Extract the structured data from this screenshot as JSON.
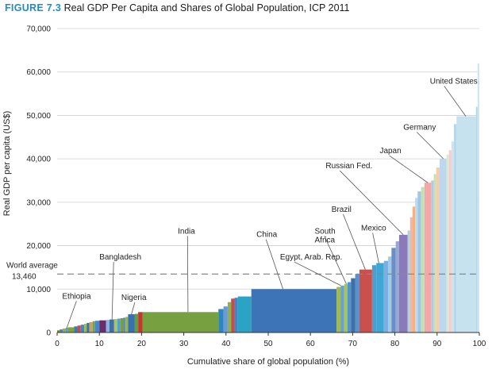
{
  "figure": {
    "number": "FIGURE 7.3",
    "title": "Real GDP Per Capita and Shares of Global Population, ICP 2011"
  },
  "colors": {
    "accent": "#1b8fc5",
    "grid": "#cfcfcf",
    "reference_line": "#888888"
  },
  "chart_data": {
    "type": "bar",
    "subtype": "variable-width",
    "xlabel": "Cumulative share of global population (%)",
    "ylabel": "Real GDP per capita (US$)",
    "xlim": [
      0,
      100
    ],
    "ylim": [
      0,
      70000
    ],
    "x_ticks": [
      "0",
      "10",
      "20",
      "30",
      "40",
      "50",
      "60",
      "70",
      "80",
      "90",
      "100"
    ],
    "y_ticks": [
      "0",
      "10,000",
      "20,000",
      "30,000",
      "40,000",
      "50,000",
      "60,000",
      "70,000"
    ],
    "grid": true,
    "reference_line": {
      "value": 13460,
      "label_line1": "World average",
      "label_line2": "13,460"
    },
    "bars": [
      {
        "x0": 0.0,
        "x1": 0.6,
        "y": 500,
        "color": "#6b8e23"
      },
      {
        "x0": 0.6,
        "x1": 1.3,
        "y": 700,
        "color": "#4a7db8"
      },
      {
        "x0": 1.3,
        "x1": 2.0,
        "y": 900,
        "color": "#8cb04a"
      },
      {
        "x0": 2.0,
        "x1": 2.6,
        "y": 1100,
        "color": "#5a9bd4"
      },
      {
        "x0": 2.6,
        "x1": 4.0,
        "y": 1200,
        "color": "#7ca33e"
      },
      {
        "x0": 4.0,
        "x1": 4.8,
        "y": 1400,
        "color": "#3a7ab0"
      },
      {
        "x0": 4.8,
        "x1": 5.6,
        "y": 1600,
        "color": "#c0504d"
      },
      {
        "x0": 5.6,
        "x1": 6.4,
        "y": 1800,
        "color": "#4f81bd"
      },
      {
        "x0": 6.4,
        "x1": 7.0,
        "y": 2000,
        "color": "#9bbb59"
      },
      {
        "x0": 7.0,
        "x1": 7.6,
        "y": 2200,
        "color": "#2e75b6"
      },
      {
        "x0": 7.6,
        "x1": 8.4,
        "y": 2400,
        "color": "#c9a063"
      },
      {
        "x0": 8.4,
        "x1": 9.0,
        "y": 2600,
        "color": "#6aa84f"
      },
      {
        "x0": 9.0,
        "x1": 10.0,
        "y": 2700,
        "color": "#4a86c5"
      },
      {
        "x0": 10.0,
        "x1": 11.6,
        "y": 2800,
        "color": "#6b2c6b"
      },
      {
        "x0": 11.6,
        "x1": 12.4,
        "y": 2900,
        "color": "#8db3e2"
      },
      {
        "x0": 12.4,
        "x1": 13.5,
        "y": 3000,
        "color": "#3d6fa8"
      },
      {
        "x0": 13.5,
        "x1": 14.3,
        "y": 3100,
        "color": "#a9c26f"
      },
      {
        "x0": 14.3,
        "x1": 15.0,
        "y": 3200,
        "color": "#4f9fcf"
      },
      {
        "x0": 15.0,
        "x1": 15.6,
        "y": 3300,
        "color": "#7a9e3d"
      },
      {
        "x0": 15.6,
        "x1": 16.2,
        "y": 3400,
        "color": "#5b8fc9"
      },
      {
        "x0": 16.2,
        "x1": 16.8,
        "y": 3600,
        "color": "#94b356"
      },
      {
        "x0": 16.8,
        "x1": 18.4,
        "y": 4200,
        "color": "#3a70ad"
      },
      {
        "x0": 18.4,
        "x1": 19.2,
        "y": 4300,
        "color": "#5d9e4a"
      },
      {
        "x0": 19.2,
        "x1": 20.2,
        "y": 4700,
        "color": "#c0392b"
      },
      {
        "x0": 20.2,
        "x1": 38.2,
        "y": 4700,
        "color": "#77a040"
      },
      {
        "x0": 38.2,
        "x1": 39.4,
        "y": 5400,
        "color": "#2e86c1"
      },
      {
        "x0": 39.4,
        "x1": 40.4,
        "y": 6000,
        "color": "#6a9bd1"
      },
      {
        "x0": 40.4,
        "x1": 41.2,
        "y": 7000,
        "color": "#8fb04c"
      },
      {
        "x0": 41.2,
        "x1": 42.0,
        "y": 7800,
        "color": "#c0504d"
      },
      {
        "x0": 42.0,
        "x1": 42.8,
        "y": 8000,
        "color": "#4f81bd"
      },
      {
        "x0": 42.8,
        "x1": 46.0,
        "y": 8300,
        "color": "#2aa3c4"
      },
      {
        "x0": 46.0,
        "x1": 66.2,
        "y": 10000,
        "color": "#3d74b8"
      },
      {
        "x0": 66.2,
        "x1": 67.2,
        "y": 10500,
        "color": "#9bbb59"
      },
      {
        "x0": 67.2,
        "x1": 68.0,
        "y": 10800,
        "color": "#6aa0d4"
      },
      {
        "x0": 68.0,
        "x1": 68.8,
        "y": 11200,
        "color": "#a6c35e"
      },
      {
        "x0": 68.8,
        "x1": 69.6,
        "y": 11600,
        "color": "#5096cc"
      },
      {
        "x0": 69.6,
        "x1": 70.6,
        "y": 12500,
        "color": "#3f6fa9"
      },
      {
        "x0": 70.6,
        "x1": 71.6,
        "y": 13500,
        "color": "#5b8fc9"
      },
      {
        "x0": 71.6,
        "x1": 74.6,
        "y": 14500,
        "color": "#c9504c"
      },
      {
        "x0": 74.6,
        "x1": 75.6,
        "y": 15500,
        "color": "#4aa0cf"
      },
      {
        "x0": 75.6,
        "x1": 77.4,
        "y": 16000,
        "color": "#3fa7d6"
      },
      {
        "x0": 77.4,
        "x1": 78.4,
        "y": 16500,
        "color": "#7bb0de"
      },
      {
        "x0": 78.4,
        "x1": 79.2,
        "y": 17500,
        "color": "#a3c9e8"
      },
      {
        "x0": 79.2,
        "x1": 80.2,
        "y": 19500,
        "color": "#6a8fc7"
      },
      {
        "x0": 80.2,
        "x1": 81.0,
        "y": 21000,
        "color": "#9aa6d6"
      },
      {
        "x0": 81.0,
        "x1": 83.0,
        "y": 22500,
        "color": "#8b7ab8"
      },
      {
        "x0": 83.0,
        "x1": 83.6,
        "y": 23500,
        "color": "#b3cde0"
      },
      {
        "x0": 83.6,
        "x1": 84.2,
        "y": 26500,
        "color": "#f2b6a0"
      },
      {
        "x0": 84.2,
        "x1": 84.8,
        "y": 29000,
        "color": "#f4b183"
      },
      {
        "x0": 84.8,
        "x1": 85.4,
        "y": 31000,
        "color": "#b7dde8"
      },
      {
        "x0": 85.4,
        "x1": 86.2,
        "y": 32500,
        "color": "#9fc5e8"
      },
      {
        "x0": 86.2,
        "x1": 87.0,
        "y": 33500,
        "color": "#c5e0b4"
      },
      {
        "x0": 87.0,
        "x1": 88.6,
        "y": 34500,
        "color": "#f4a7a7"
      },
      {
        "x0": 88.6,
        "x1": 89.2,
        "y": 35000,
        "color": "#b4c7e7"
      },
      {
        "x0": 89.2,
        "x1": 89.8,
        "y": 36500,
        "color": "#c9e2b3"
      },
      {
        "x0": 89.8,
        "x1": 90.6,
        "y": 38000,
        "color": "#f8cbad"
      },
      {
        "x0": 90.6,
        "x1": 92.2,
        "y": 40000,
        "color": "#bdd7ee"
      },
      {
        "x0": 92.2,
        "x1": 92.8,
        "y": 41000,
        "color": "#d9ead3"
      },
      {
        "x0": 92.8,
        "x1": 93.4,
        "y": 42000,
        "color": "#f4cccc"
      },
      {
        "x0": 93.4,
        "x1": 94.0,
        "y": 44000,
        "color": "#cfe2f3"
      },
      {
        "x0": 94.0,
        "x1": 94.6,
        "y": 48000,
        "color": "#b6d7e8"
      },
      {
        "x0": 94.6,
        "x1": 99.2,
        "y": 49800,
        "color": "#c6e2ee"
      },
      {
        "x0": 99.2,
        "x1": 99.6,
        "y": 52000,
        "color": "#b7d8ea"
      },
      {
        "x0": 99.6,
        "x1": 100.0,
        "y": 62000,
        "color": "#cde6f0"
      }
    ],
    "country_labels": [
      {
        "name": "Ethiopia",
        "text_x": 1.2,
        "text_y": 7800,
        "anchor": "start",
        "x": 2.3,
        "y": 1100
      },
      {
        "name": "Bangladesh",
        "text_x": 10.0,
        "text_y": 16800,
        "anchor": "start",
        "x": 13.0,
        "y": 3000
      },
      {
        "name": "Nigeria",
        "text_x": 15.2,
        "text_y": 7500,
        "anchor": "start",
        "x": 17.6,
        "y": 4200
      },
      {
        "name": "India",
        "text_x": 28.6,
        "text_y": 22800,
        "anchor": "start",
        "x": 31.0,
        "y": 4700
      },
      {
        "name": "China",
        "text_x": 47.2,
        "text_y": 22000,
        "anchor": "start",
        "x": 53.5,
        "y": 10000
      },
      {
        "name": "Egypt, Arab. Rep.",
        "text_x": 52.8,
        "text_y": 16800,
        "anchor": "start",
        "x": 67.2,
        "y": 10800
      },
      {
        "name": "South",
        "text_x": 61.0,
        "text_y": 22800,
        "anchor": "start",
        "x": 68.5,
        "y": 11200
      },
      {
        "name": "Africa",
        "text_x": 61.0,
        "text_y": 20700,
        "anchor": "start",
        "x": null,
        "y": null
      },
      {
        "name": "Brazil",
        "text_x": 65.0,
        "text_y": 27800,
        "anchor": "start",
        "x": 73.0,
        "y": 14500
      },
      {
        "name": "Mexico",
        "text_x": 72.0,
        "text_y": 23500,
        "anchor": "start",
        "x": 76.2,
        "y": 16000
      },
      {
        "name": "Russian Fed.",
        "text_x": 63.6,
        "text_y": 37800,
        "anchor": "start",
        "x": 82.0,
        "y": 22500
      },
      {
        "name": "Japan",
        "text_x": 76.4,
        "text_y": 41300,
        "anchor": "start",
        "x": 87.8,
        "y": 34500
      },
      {
        "name": "Germany",
        "text_x": 82.0,
        "text_y": 46700,
        "anchor": "start",
        "x": 91.5,
        "y": 40000
      },
      {
        "name": "United States",
        "text_x": 88.3,
        "text_y": 57300,
        "anchor": "start",
        "x": 96.8,
        "y": 49800
      }
    ]
  }
}
